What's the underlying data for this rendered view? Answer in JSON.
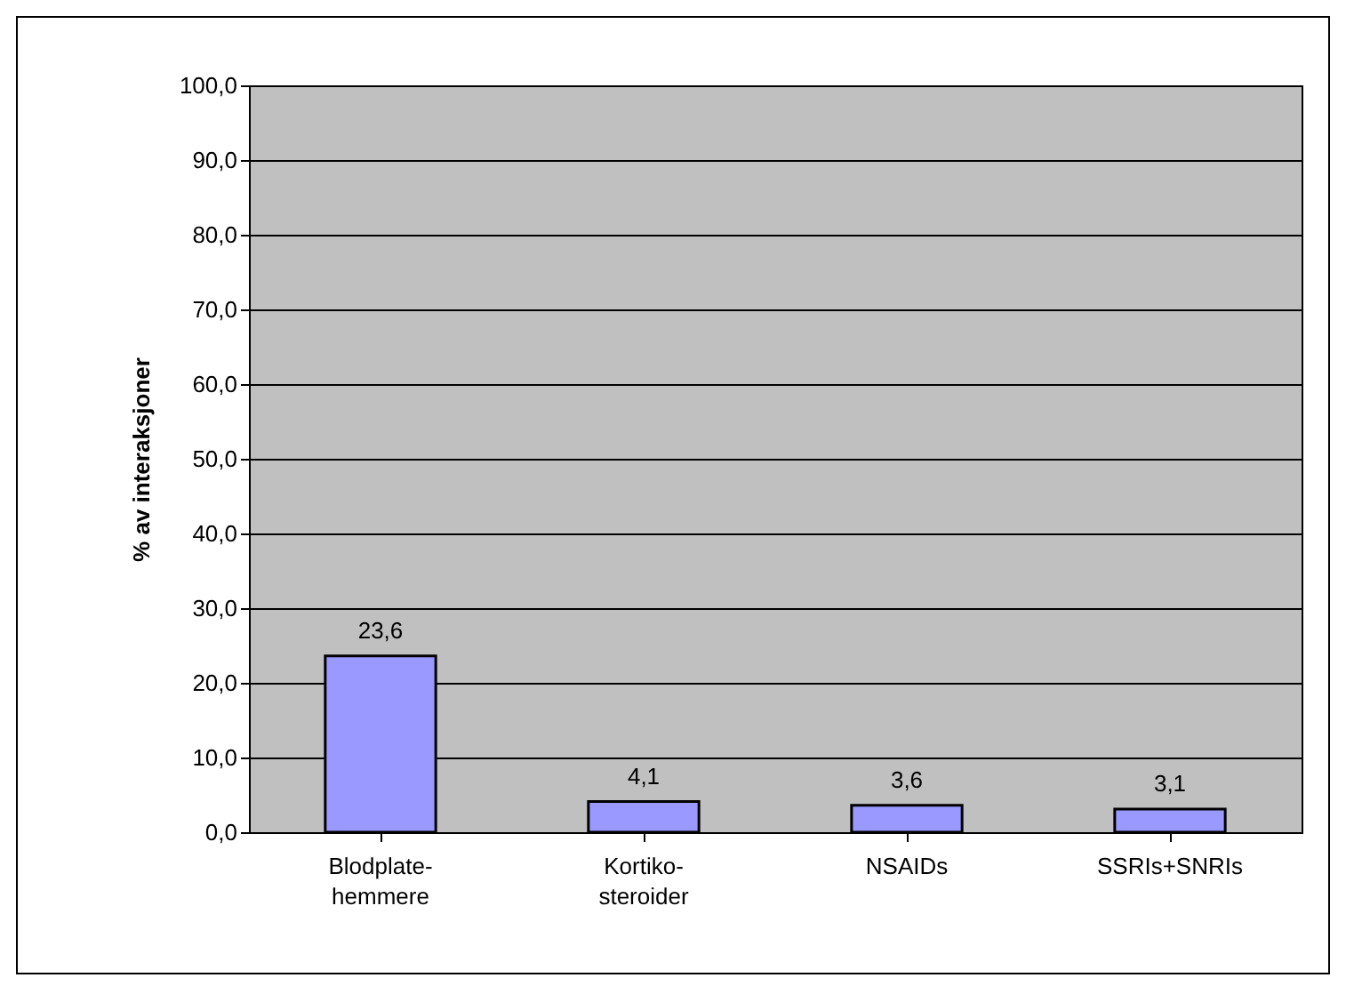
{
  "chart_data": {
    "type": "bar",
    "ylabel": "% av interaksjoner",
    "categories": [
      "Blodplate-\nhemmere",
      "Kortiko-\nsteroider",
      "NSAIDs",
      "SSRIs+SNRIs"
    ],
    "values": [
      23.6,
      4.1,
      3.6,
      3.1
    ],
    "value_labels": [
      "23,6",
      "4,1",
      "3,6",
      "3,1"
    ],
    "color": "#9999ff",
    "ylim": [
      0,
      100
    ],
    "yticks": [
      {
        "value": 0,
        "label": "0,0"
      },
      {
        "value": 10,
        "label": "10,0"
      },
      {
        "value": 20,
        "label": "20,0"
      },
      {
        "value": 30,
        "label": "30,0"
      },
      {
        "value": 40,
        "label": "40,0"
      },
      {
        "value": 50,
        "label": "50,0"
      },
      {
        "value": 60,
        "label": "60,0"
      },
      {
        "value": 70,
        "label": "70,0"
      },
      {
        "value": 80,
        "label": "80,0"
      },
      {
        "value": 90,
        "label": "90,0"
      },
      {
        "value": 100,
        "label": "100,0"
      }
    ],
    "grid": "y"
  }
}
